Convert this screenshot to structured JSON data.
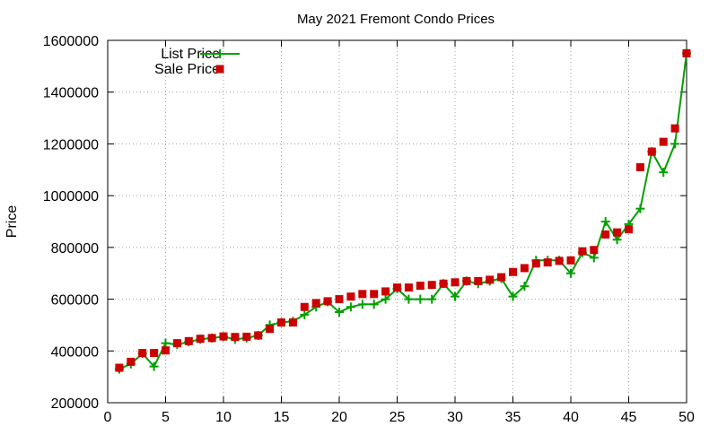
{
  "chart_data": {
    "type": "line",
    "title": "May 2021 Fremont Condo Prices",
    "xlabel": "",
    "ylabel": "Price",
    "xlim": [
      0,
      50
    ],
    "ylim": [
      200000,
      1600000
    ],
    "x_ticks": [
      0,
      5,
      10,
      15,
      20,
      25,
      30,
      35,
      40,
      45,
      50
    ],
    "y_ticks": [
      200000,
      400000,
      600000,
      800000,
      1000000,
      1200000,
      1400000,
      1600000
    ],
    "grid": true,
    "grid_style": "dotted",
    "legend_position": "top-left",
    "x": [
      1,
      2,
      3,
      4,
      5,
      6,
      7,
      8,
      9,
      10,
      11,
      12,
      13,
      14,
      15,
      16,
      17,
      18,
      19,
      20,
      21,
      22,
      23,
      24,
      25,
      26,
      27,
      28,
      29,
      30,
      31,
      32,
      33,
      34,
      35,
      36,
      37,
      38,
      39,
      40,
      41,
      42,
      43,
      44,
      45,
      46,
      47,
      48,
      49,
      50
    ],
    "series": [
      {
        "name": "List Price",
        "style": "line-with-plus-markers",
        "color": "#00a000",
        "values": [
          330000,
          350000,
          390000,
          340000,
          430000,
          425000,
          435000,
          445000,
          450000,
          455000,
          445000,
          450000,
          460000,
          500000,
          510000,
          515000,
          540000,
          570000,
          590000,
          550000,
          570000,
          580000,
          580000,
          600000,
          640000,
          600000,
          600000,
          600000,
          660000,
          610000,
          670000,
          660000,
          670000,
          680000,
          610000,
          650000,
          750000,
          750000,
          750000,
          700000,
          780000,
          760000,
          900000,
          830000,
          890000,
          950000,
          1170000,
          1090000,
          1200000,
          1550000
        ]
      },
      {
        "name": "Sale Price",
        "style": "square-markers",
        "color": "#cc0000",
        "values": [
          335000,
          358000,
          392000,
          392000,
          402000,
          430000,
          438000,
          447000,
          450000,
          456000,
          454000,
          455000,
          460000,
          485000,
          510000,
          510000,
          570000,
          585000,
          592000,
          600000,
          610000,
          620000,
          620000,
          630000,
          645000,
          645000,
          652000,
          655000,
          660000,
          665000,
          670000,
          670000,
          675000,
          685000,
          705000,
          720000,
          738000,
          742000,
          748000,
          750000,
          785000,
          790000,
          850000,
          858000,
          870000,
          1110000,
          1170000,
          1208000,
          1260000,
          1550000
        ]
      }
    ]
  }
}
